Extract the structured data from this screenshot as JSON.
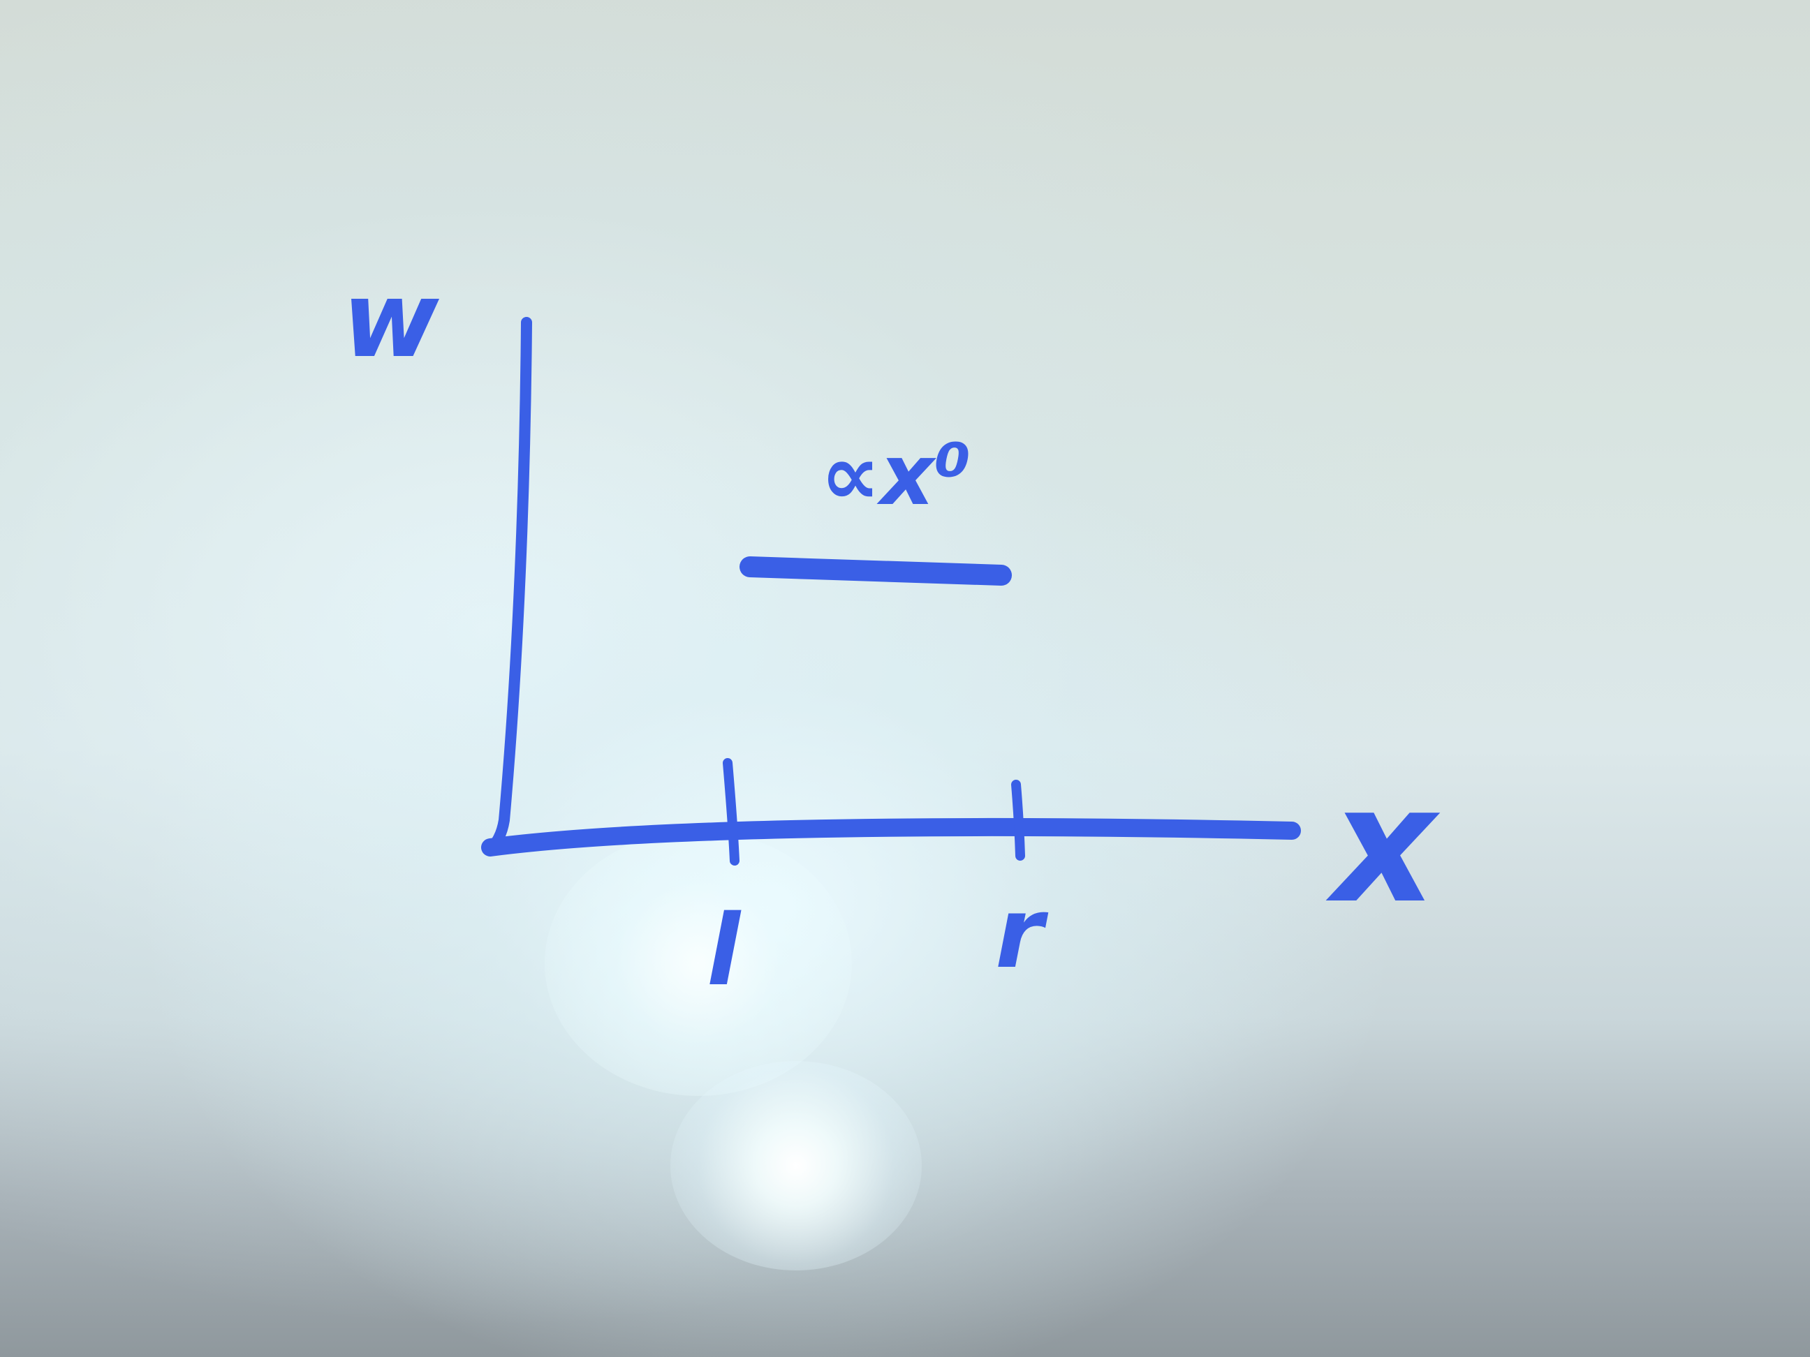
{
  "diagram": {
    "y_axis_label": "w",
    "x_axis_label": "x",
    "tick_labels": [
      "l",
      "r"
    ],
    "line_label": "∝x⁰",
    "ink_color": "#3a5fe6"
  }
}
